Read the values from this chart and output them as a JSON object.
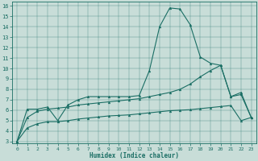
{
  "xlabel": "Humidex (Indice chaleur)",
  "background_color": "#c8ddd8",
  "line_color": "#1a6e64",
  "xlim": [
    -0.5,
    23.5
  ],
  "ylim": [
    2.8,
    16.4
  ],
  "x": [
    0,
    1,
    2,
    3,
    4,
    5,
    6,
    7,
    8,
    9,
    10,
    11,
    12,
    13,
    14,
    15,
    16,
    17,
    18,
    19,
    20,
    21,
    22,
    23
  ],
  "line1": [
    3.0,
    6.1,
    6.1,
    6.3,
    5.0,
    6.5,
    7.0,
    7.3,
    7.3,
    7.3,
    7.3,
    7.3,
    7.4,
    9.8,
    14.0,
    15.8,
    15.7,
    14.2,
    11.1,
    10.5,
    10.3,
    7.3,
    7.5,
    5.3
  ],
  "line2": [
    3.0,
    5.3,
    5.9,
    6.1,
    6.2,
    6.3,
    6.5,
    6.6,
    6.7,
    6.8,
    6.9,
    7.0,
    7.1,
    7.3,
    7.5,
    7.7,
    8.0,
    8.5,
    9.2,
    9.8,
    10.3,
    7.3,
    7.7,
    5.3
  ],
  "line3": [
    3.0,
    4.3,
    4.7,
    4.9,
    4.9,
    5.0,
    5.15,
    5.25,
    5.35,
    5.45,
    5.5,
    5.55,
    5.65,
    5.75,
    5.85,
    5.95,
    6.0,
    6.05,
    6.15,
    6.25,
    6.35,
    6.45,
    5.0,
    5.3
  ],
  "yticks": [
    3,
    4,
    5,
    6,
    7,
    8,
    9,
    10,
    11,
    12,
    13,
    14,
    15,
    16
  ],
  "xticks": [
    0,
    1,
    2,
    3,
    4,
    5,
    6,
    7,
    8,
    9,
    10,
    11,
    12,
    13,
    14,
    15,
    16,
    17,
    18,
    19,
    20,
    21,
    22,
    23
  ],
  "xtick_labels": [
    "0",
    "1",
    "2",
    "3",
    "4",
    "5",
    "6",
    "7",
    "8",
    "9",
    "10",
    "11",
    "12",
    "13",
    "14",
    "15",
    "16",
    "17",
    "18",
    "19",
    "20",
    "21",
    "22",
    "23"
  ]
}
